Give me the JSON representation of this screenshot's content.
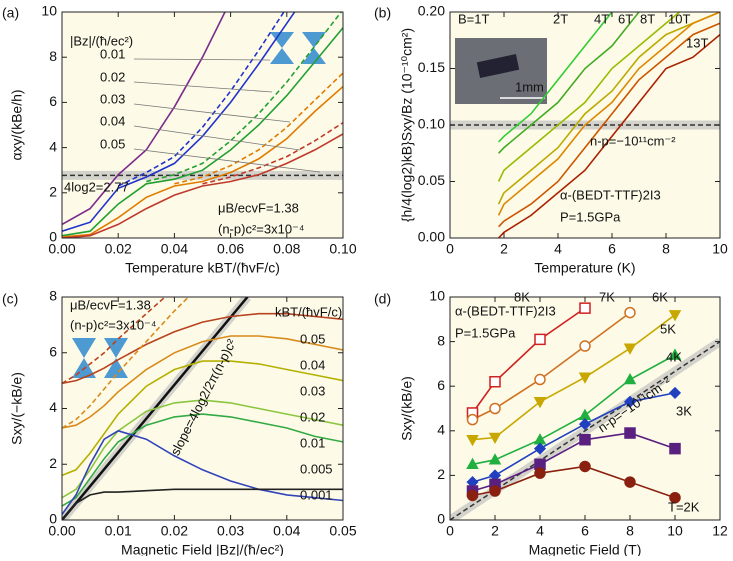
{
  "chart_data": [
    {
      "type": "line",
      "title": "(a)",
      "x_label": "Temperature kBT/(ħvF/c)",
      "y_label": "αxy/(kBe/h)",
      "x": [
        0,
        0.01,
        0.02,
        0.03,
        0.04,
        0.05,
        0.06,
        0.07,
        0.08,
        0.09,
        0.1
      ],
      "xlim": [
        0,
        0.1
      ],
      "ylim": [
        0,
        10
      ],
      "xticks": [
        {
          "value": 0,
          "label": "0.00"
        },
        0.02,
        0.04,
        0.06,
        0.08,
        {
          "value": 0.1,
          "label": "0.10"
        }
      ],
      "yticks": [
        0,
        2,
        4,
        6,
        8,
        10
      ],
      "series": [
        {
          "name": "0.01",
          "color": "#7b2a8c",
          "values": [
            0.6,
            1.3,
            2.8,
            3.9,
            5.8,
            8.0,
            10.5,
            null,
            null,
            null,
            null
          ]
        },
        {
          "name": "0.02",
          "color": "#2233cc",
          "values": [
            0.3,
            0.7,
            2.2,
            2.7,
            3.3,
            4.5,
            6.0,
            7.7,
            9.5,
            11.3,
            null
          ]
        },
        {
          "name": "0.03",
          "color": "#22a033",
          "values": [
            0.1,
            0.3,
            1.5,
            2.4,
            2.6,
            3.0,
            3.9,
            5.0,
            6.3,
            7.8,
            9.3
          ]
        },
        {
          "name": "0.04",
          "color": "#e07b00",
          "values": [
            0.05,
            0.15,
            0.9,
            1.8,
            2.3,
            2.5,
            2.9,
            3.5,
            4.4,
            5.6,
            6.7
          ]
        },
        {
          "name": "0.05",
          "color": "#c0392b",
          "values": [
            0,
            0.1,
            0.6,
            1.3,
            1.9,
            2.3,
            2.5,
            2.8,
            3.3,
            3.9,
            4.6
          ]
        },
        {
          "color": "#2233cc",
          "dashed": true,
          "values": [
            null,
            null,
            2.3,
            2.9,
            3.6,
            4.9,
            6.5,
            8.3,
            10.2,
            null,
            null
          ]
        },
        {
          "color": "#22a033",
          "dashed": true,
          "values": [
            null,
            null,
            null,
            2.5,
            2.8,
            3.3,
            4.3,
            5.5,
            6.9,
            8.5,
            10.1
          ]
        },
        {
          "color": "#e07b00",
          "dashed": true,
          "values": [
            null,
            null,
            null,
            null,
            2.4,
            2.7,
            3.2,
            3.9,
            4.9,
            6.1,
            7.3
          ]
        },
        {
          "color": "#c0392b",
          "dashed": true,
          "values": [
            null,
            null,
            null,
            null,
            null,
            2.4,
            2.7,
            3.1,
            3.6,
            4.3,
            5.1
          ]
        }
      ],
      "reference_line": {
        "x": [
          0,
          0.1
        ],
        "y": [
          2.77,
          2.77
        ]
      },
      "annotations": [
        "|Bz|/(ħ/ec²)",
        "4log2=2.77",
        "μB/ecvF=1.38",
        "(n-p)c²=3x10⁻⁴"
      ]
    },
    {
      "type": "line",
      "title": "(b)",
      "x_label": "Temperature (K)",
      "y_label": "{h/4(log2)kB}Sxy/Bz (10⁻¹⁰cm²)",
      "x": [
        1.8,
        2,
        3,
        4,
        5,
        6,
        7,
        8,
        9,
        10
      ],
      "xlim": [
        0,
        10
      ],
      "ylim": [
        0,
        0.2
      ],
      "xticks": [
        0,
        2,
        4,
        6,
        8,
        10
      ],
      "yticks": [
        {
          "value": 0,
          "label": "0.00"
        },
        0.05,
        {
          "value": 0.1,
          "label": "0.10"
        },
        0.15,
        {
          "value": 0.2,
          "label": "0.20"
        }
      ],
      "series": [
        {
          "name": "B=1T",
          "color": "#33cc33",
          "values": [
            0.085,
            0.09,
            0.11,
            0.14,
            0.17,
            0.2,
            0.215,
            null,
            null,
            null
          ]
        },
        {
          "name": "2T",
          "color": "#44aa22",
          "values": [
            0.075,
            0.08,
            0.1,
            0.12,
            0.15,
            0.17,
            0.2,
            0.22,
            null,
            null
          ]
        },
        {
          "name": "4T",
          "color": "#99bb00",
          "values": [
            0.05,
            0.06,
            0.08,
            0.1,
            0.12,
            0.15,
            0.17,
            0.19,
            0.21,
            null
          ]
        },
        {
          "name": "6T",
          "color": "#bbaa00",
          "values": [
            0.03,
            0.04,
            0.06,
            0.08,
            0.11,
            0.13,
            0.16,
            0.18,
            0.19,
            0.2
          ]
        },
        {
          "name": "8T",
          "color": "#dd8800",
          "values": [
            0.02,
            0.03,
            0.05,
            0.07,
            0.1,
            0.12,
            0.15,
            0.17,
            0.19,
            0.2
          ]
        },
        {
          "name": "10T",
          "color": "#cc5500",
          "values": [
            0.01,
            0.015,
            0.03,
            0.05,
            0.08,
            0.11,
            0.14,
            0.16,
            0.18,
            0.19
          ]
        },
        {
          "name": "13T",
          "color": "#aa2200",
          "values": [
            0,
            0.005,
            0.02,
            0.04,
            0.06,
            0.09,
            0.12,
            0.15,
            0.16,
            0.18
          ]
        }
      ],
      "reference_line": {
        "x": [
          0,
          10
        ],
        "y": [
          0.1,
          0.1
        ]
      },
      "annotations": [
        "1mm",
        "n-p=−10¹¹cm⁻²",
        "α-(BEDT-TTF)2I3",
        "P=1.5GPa"
      ]
    },
    {
      "type": "line",
      "title": "(c)",
      "x_label": "Magnetic Field |Bz|/(ħ/ec²)",
      "y_label": "Sxy/(−kB/e)",
      "x": [
        0,
        0.0025,
        0.005,
        0.0075,
        0.01,
        0.015,
        0.02,
        0.025,
        0.03,
        0.035,
        0.04,
        0.045,
        0.05
      ],
      "xlim": [
        0,
        0.05
      ],
      "ylim": [
        0,
        8
      ],
      "xticks": [
        {
          "value": 0,
          "label": "0.00"
        },
        0.01,
        0.02,
        0.03,
        0.04,
        0.05
      ],
      "yticks": [
        0,
        2,
        4,
        6,
        8
      ],
      "series": [
        {
          "name": "0.05",
          "color": "#b8431f",
          "values": [
            4.9,
            5.0,
            5.2,
            5.45,
            5.75,
            6.3,
            6.75,
            7.1,
            7.3,
            7.4,
            7.4,
            7.3,
            7.2
          ]
        },
        {
          "name": "0.04",
          "color": "#d98a1a",
          "values": [
            3.3,
            3.4,
            3.7,
            4.1,
            4.6,
            5.4,
            6.0,
            6.4,
            6.6,
            6.6,
            6.5,
            6.3,
            6.1
          ]
        },
        {
          "name": "0.03",
          "color": "#b5b000",
          "values": [
            1.6,
            1.8,
            2.4,
            3.1,
            3.8,
            4.8,
            5.4,
            5.7,
            5.7,
            5.6,
            5.4,
            5.2,
            5.0
          ]
        },
        {
          "name": "0.02",
          "color": "#8cc63f",
          "values": [
            0.8,
            1.1,
            1.8,
            2.6,
            3.2,
            3.9,
            4.2,
            4.3,
            4.2,
            4.0,
            3.8,
            3.6,
            3.4
          ]
        },
        {
          "name": "0.01",
          "color": "#33aa44",
          "values": [
            0.5,
            0.8,
            1.5,
            2.2,
            2.8,
            3.4,
            3.7,
            3.8,
            3.7,
            3.5,
            3.3,
            3.0,
            2.8
          ]
        },
        {
          "name": "0.005",
          "color": "#3344bb",
          "values": [
            0.2,
            0.9,
            2.0,
            2.9,
            3.2,
            2.9,
            2.3,
            1.8,
            1.4,
            1.1,
            0.9,
            0.8,
            0.7
          ]
        },
        {
          "name": "0.001",
          "color": "#222222",
          "values": [
            0,
            0.6,
            0.9,
            1.0,
            1.0,
            1.05,
            1.1,
            1.1,
            1.1,
            1.1,
            1.1,
            1.1,
            1.1
          ]
        },
        {
          "color": "#b8431f",
          "dashed": true,
          "values": [
            4.9,
            5.2,
            5.6,
            6.0,
            6.5,
            7.4,
            8.3,
            null,
            null,
            null,
            null,
            null,
            null
          ]
        },
        {
          "color": "#d98a1a",
          "dashed": true,
          "values": [
            3.3,
            3.6,
            4.1,
            4.7,
            5.3,
            6.4,
            7.5,
            8.5,
            null,
            null,
            null,
            null,
            null
          ]
        }
      ],
      "reference_line": {
        "x": [
          0,
          0.033
        ],
        "y": [
          0,
          8
        ]
      },
      "annotations": [
        "μB/ecvF=1.38",
        "(n-p)c²=3x10⁻⁴",
        "kBT/(ħvF/c)",
        "slope=4log2/2π(n-p)c²"
      ]
    },
    {
      "type": "line",
      "title": "(d)",
      "x_label": "Magnetic Field (T)",
      "y_label": "Sxy/(kB/e)",
      "x": [
        1,
        2,
        4,
        6,
        8,
        10
      ],
      "xlim": [
        0,
        12
      ],
      "ylim": [
        0,
        10
      ],
      "xticks": [
        0,
        2,
        4,
        6,
        8,
        10,
        12
      ],
      "yticks": [
        0,
        2,
        4,
        6,
        8,
        10
      ],
      "series": [
        {
          "name": "8K",
          "color": "#d02020",
          "marker": "square-open",
          "values": [
            4.8,
            6.2,
            8.1,
            9.5,
            null,
            null
          ]
        },
        {
          "name": "7K",
          "color": "#d07020",
          "marker": "circle-open",
          "values": [
            4.5,
            5.0,
            6.3,
            7.8,
            9.3,
            null
          ]
        },
        {
          "name": "6K",
          "color": "#c8a800",
          "marker": "triangle-down",
          "values": [
            3.6,
            3.7,
            5.3,
            6.4,
            7.7,
            9.2
          ]
        },
        {
          "name": "5K",
          "color": "#20b040",
          "marker": "triangle-up",
          "values": [
            2.5,
            2.7,
            3.6,
            4.7,
            6.3,
            7.4
          ]
        },
        {
          "name": "4K",
          "color": "#2040c0",
          "marker": "diamond",
          "values": [
            1.7,
            2.0,
            3.2,
            4.3,
            5.3,
            5.7
          ]
        },
        {
          "name": "3K",
          "color": "#5a2080",
          "marker": "square",
          "values": [
            1.3,
            1.6,
            2.5,
            3.6,
            3.9,
            3.2
          ]
        },
        {
          "name": "T=2K",
          "color": "#8a2010",
          "marker": "circle",
          "values": [
            1.1,
            1.3,
            2.1,
            2.4,
            1.7,
            1.0
          ]
        }
      ],
      "reference_line": {
        "x": [
          0,
          12
        ],
        "y": [
          0,
          8
        ]
      },
      "annotations": [
        "α-(BEDT-TTF)2I3",
        "P=1.5GPa",
        "n-p=−10¹¹cm⁻²"
      ]
    }
  ]
}
